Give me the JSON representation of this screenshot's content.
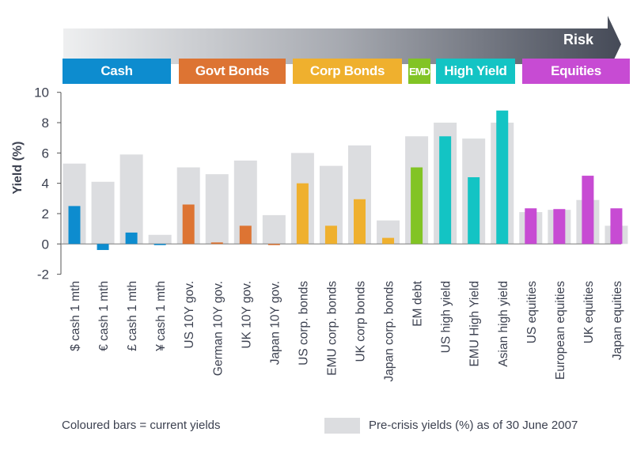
{
  "header": {
    "risk_label": "Risk",
    "categories": [
      {
        "label": "Cash",
        "color": "#0d8ccf"
      },
      {
        "label": "Govt Bonds",
        "color": "#dd7433"
      },
      {
        "label": "Corp Bonds",
        "color": "#efb02e"
      },
      {
        "label": "EMD",
        "color": "#82c425"
      },
      {
        "label": "High Yield",
        "color": "#13c4c4"
      },
      {
        "label": "Equities",
        "color": "#c74bd3"
      }
    ]
  },
  "legend": {
    "current": "Coloured bars = current yields",
    "precrisis": "Pre-crisis yields (%) as of 30 June 2007",
    "precrisis_color": "#dcdde0"
  },
  "chart_data": {
    "type": "bar",
    "ylabel": "Yield (%)",
    "ylim": [
      -2,
      10
    ],
    "yticks": [
      "-2",
      "0",
      "2",
      "4",
      "6",
      "8",
      "10"
    ],
    "grid": false,
    "categories": [
      "$ cash 1 mth",
      "€ cash 1 mth",
      "£ cash 1 mth",
      "¥ cash 1 mth",
      "US 10Y gov.",
      "German 10Y gov.",
      "UK 10Y gov.",
      "Japan 10Y gov.",
      "US corp. bonds",
      "EMU corp. bonds",
      "UK corp bonds",
      "Japan corp. bonds",
      "EM debt",
      "US high yield",
      "EMU High Yield",
      "Asian high yield",
      "US equities",
      "European equities",
      "UK equities",
      "Japan equities"
    ],
    "category_group": [
      0,
      0,
      0,
      0,
      1,
      1,
      1,
      1,
      2,
      2,
      2,
      2,
      3,
      4,
      4,
      4,
      5,
      5,
      5,
      5
    ],
    "series": [
      {
        "name": "Pre-crisis yields (%) as of 30 June 2007",
        "values": [
          5.3,
          4.1,
          5.9,
          0.6,
          5.05,
          4.6,
          5.5,
          1.9,
          6.0,
          5.15,
          6.5,
          1.55,
          7.1,
          8.0,
          6.95,
          8.0,
          2.1,
          2.25,
          2.9,
          1.2
        ]
      },
      {
        "name": "current yields",
        "values": [
          2.5,
          -0.4,
          0.75,
          -0.05,
          2.6,
          0.1,
          1.2,
          -0.05,
          4.0,
          1.2,
          2.95,
          0.4,
          5.05,
          7.1,
          4.4,
          8.8,
          2.35,
          2.3,
          4.5,
          2.35
        ]
      }
    ]
  }
}
